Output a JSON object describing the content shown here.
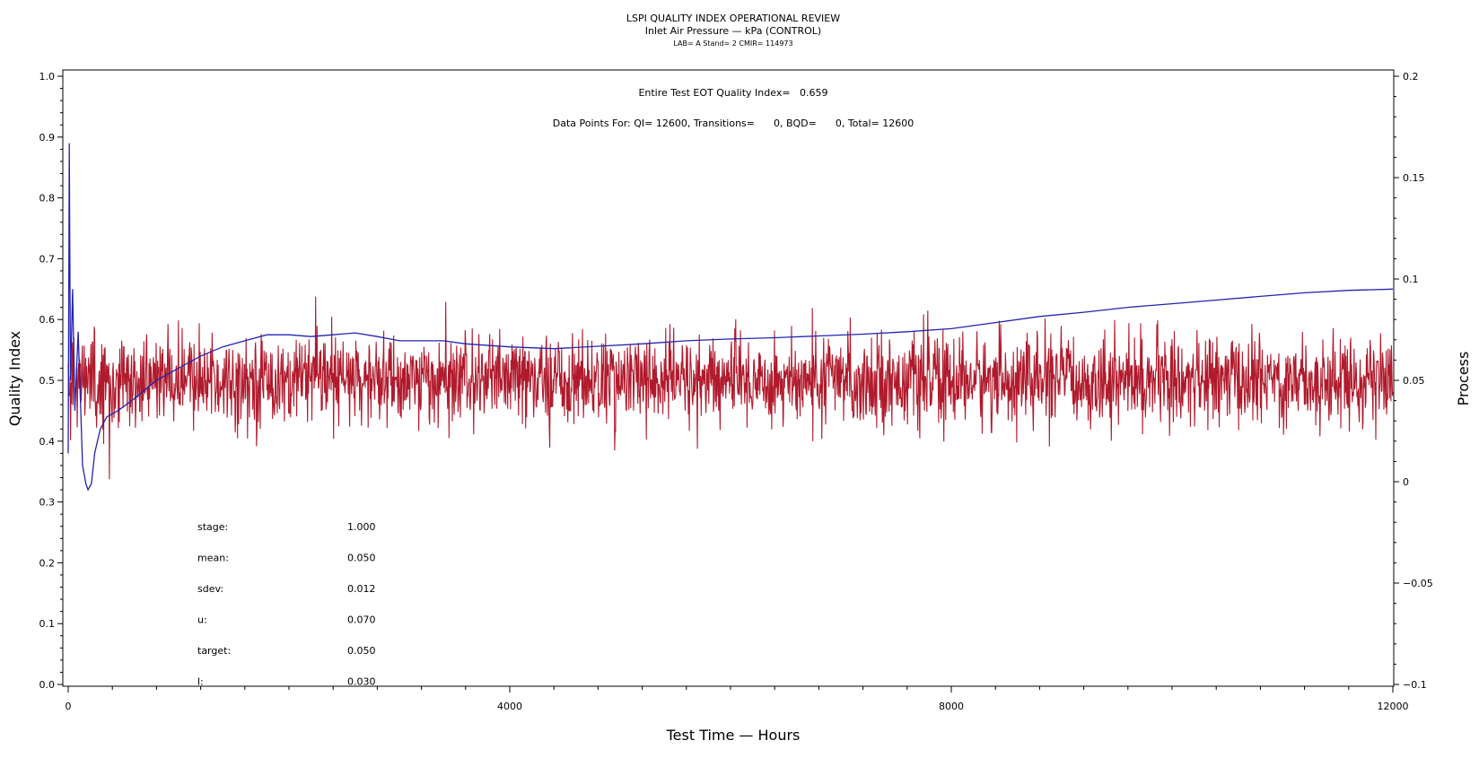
{
  "title": "LSPI QUALITY INDEX OPERATIONAL REVIEW",
  "subtitle": "Inlet Air Pressure — kPa (CONTROL)",
  "subtitle2": "LAB= A Stand= 2 CMIR= 114973",
  "note_quality": "Entire Test EOT Quality Index=   0.659",
  "note_points": "Data Points For: QI= 12600, Transitions=      0, BQD=      0, Total= 12600",
  "colors": {
    "process": "#b01a2c",
    "quality": "#2323b0"
  },
  "chart_data": {
    "type": "line",
    "xlabel": "Test Time — Hours",
    "ylabel": "Quality Index",
    "y2label": "Process",
    "xlim": [
      0,
      12000
    ],
    "ylim": [
      0.0,
      1.0
    ],
    "y2lim": [
      -0.1,
      0.2
    ],
    "x_ticks": [
      {
        "v": 0,
        "label": "0"
      },
      {
        "v": 4000,
        "label": "4000"
      },
      {
        "v": 8000,
        "label": "8000"
      },
      {
        "v": 12000,
        "label": "12000"
      }
    ],
    "y_ticks": [
      {
        "v": 0.0,
        "label": "0.0"
      },
      {
        "v": 0.1,
        "label": "0.1"
      },
      {
        "v": 0.2,
        "label": "0.2"
      },
      {
        "v": 0.3,
        "label": "0.3"
      },
      {
        "v": 0.4,
        "label": "0.4"
      },
      {
        "v": 0.5,
        "label": "0.5"
      },
      {
        "v": 0.6,
        "label": "0.6"
      },
      {
        "v": 0.7,
        "label": "0.7"
      },
      {
        "v": 0.8,
        "label": "0.8"
      },
      {
        "v": 0.9,
        "label": "0.9"
      },
      {
        "v": 1.0,
        "label": "1.0"
      }
    ],
    "y2_ticks": [
      {
        "v": -0.1,
        "label": "−0.1"
      },
      {
        "v": -0.05,
        "label": "−0.05"
      },
      {
        "v": 0,
        "label": "0"
      },
      {
        "v": 0.05,
        "label": "0.05"
      },
      {
        "v": 0.1,
        "label": "0.1"
      },
      {
        "v": 0.15,
        "label": "0.15"
      },
      {
        "v": 0.2,
        "label": "0.2"
      }
    ],
    "process_series": {
      "axis": "right",
      "mean": 0.05,
      "sdev": 0.012
    },
    "quality_series": {
      "axis": "left",
      "points": [
        [
          0,
          0.38
        ],
        [
          10,
          0.89
        ],
        [
          20,
          0.5
        ],
        [
          40,
          0.65
        ],
        [
          60,
          0.45
        ],
        [
          90,
          0.58
        ],
        [
          130,
          0.36
        ],
        [
          160,
          0.33
        ],
        [
          180,
          0.32
        ],
        [
          210,
          0.33
        ],
        [
          240,
          0.38
        ],
        [
          290,
          0.42
        ],
        [
          350,
          0.44
        ],
        [
          450,
          0.45
        ],
        [
          600,
          0.47
        ],
        [
          800,
          0.5
        ],
        [
          1000,
          0.52
        ],
        [
          1200,
          0.54
        ],
        [
          1400,
          0.555
        ],
        [
          1600,
          0.565
        ],
        [
          1800,
          0.575
        ],
        [
          2000,
          0.575
        ],
        [
          2200,
          0.572
        ],
        [
          2400,
          0.575
        ],
        [
          2600,
          0.578
        ],
        [
          2800,
          0.572
        ],
        [
          3000,
          0.565
        ],
        [
          3200,
          0.565
        ],
        [
          3400,
          0.565
        ],
        [
          3600,
          0.56
        ],
        [
          4000,
          0.555
        ],
        [
          4400,
          0.552
        ],
        [
          4800,
          0.556
        ],
        [
          5200,
          0.56
        ],
        [
          5600,
          0.565
        ],
        [
          6000,
          0.568
        ],
        [
          6400,
          0.57
        ],
        [
          6800,
          0.573
        ],
        [
          7200,
          0.576
        ],
        [
          7600,
          0.58
        ],
        [
          8000,
          0.585
        ],
        [
          8400,
          0.595
        ],
        [
          8800,
          0.605
        ],
        [
          9200,
          0.612
        ],
        [
          9600,
          0.62
        ],
        [
          10000,
          0.626
        ],
        [
          10400,
          0.632
        ],
        [
          10800,
          0.638
        ],
        [
          11200,
          0.644
        ],
        [
          11600,
          0.648
        ],
        [
          12000,
          0.65
        ]
      ]
    },
    "stats": [
      {
        "label": "stage:",
        "value": "1.000"
      },
      {
        "label": "mean:",
        "value": "0.050"
      },
      {
        "label": "sdev:",
        "value": "0.012"
      },
      {
        "label": "u:",
        "value": "0.070"
      },
      {
        "label": "target:",
        "value": "0.050"
      },
      {
        "label": "l:",
        "value": "0.030"
      }
    ]
  }
}
